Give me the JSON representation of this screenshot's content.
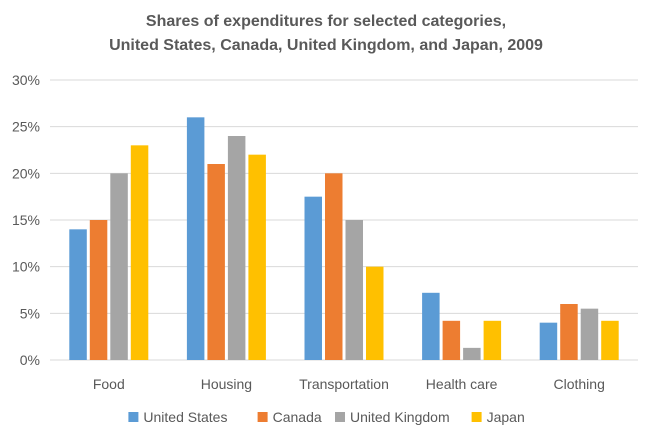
{
  "chart_data": {
    "type": "bar",
    "title_lines": [
      "Shares of expenditures for selected categories,",
      "United States, Canada, United Kingdom, and Japan, 2009"
    ],
    "categories": [
      "Food",
      "Housing",
      "Transportation",
      "Health care",
      "Clothing"
    ],
    "series": [
      {
        "name": "United States",
        "color": "#5B9BD5",
        "values": [
          14,
          26,
          17.5,
          7.2,
          4
        ]
      },
      {
        "name": "Canada",
        "color": "#ED7D31",
        "values": [
          15,
          21,
          20,
          4.2,
          6
        ]
      },
      {
        "name": "United Kingdom",
        "color": "#A5A5A5",
        "values": [
          20,
          24,
          15,
          1.3,
          5.5
        ]
      },
      {
        "name": "Japan",
        "color": "#FFC000",
        "values": [
          23,
          22,
          10,
          4.2,
          4.2
        ]
      }
    ],
    "y_ticks": [
      "0%",
      "5%",
      "10%",
      "15%",
      "20%",
      "25%",
      "30%"
    ],
    "ylim": [
      0,
      30
    ],
    "grid": true,
    "legend_position": "bottom"
  }
}
